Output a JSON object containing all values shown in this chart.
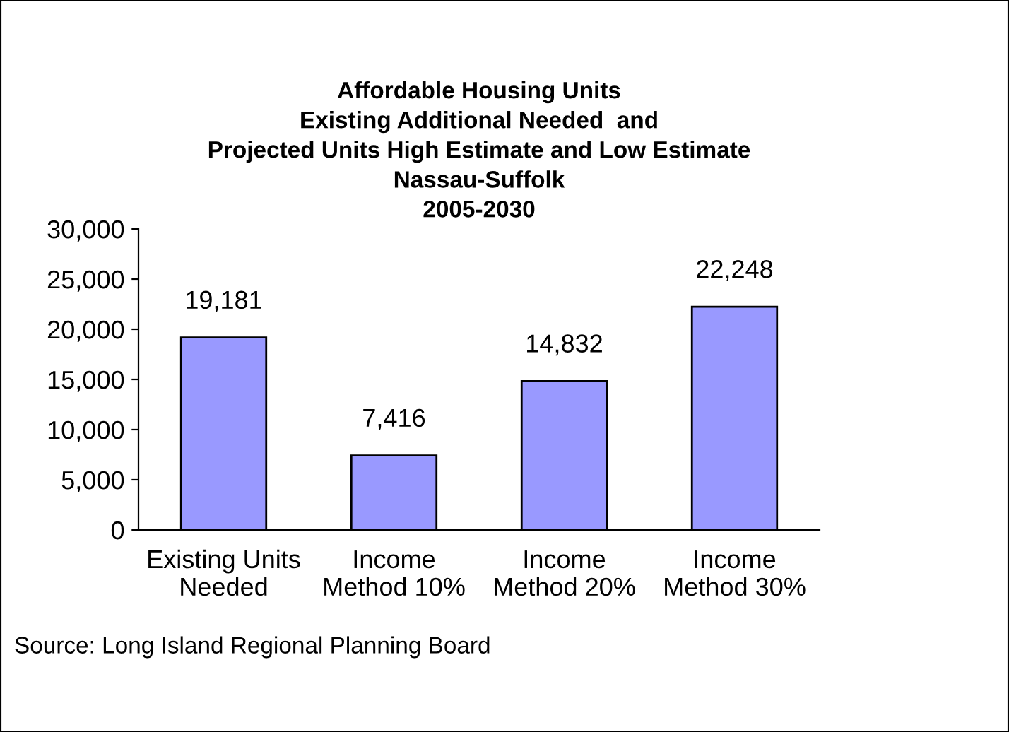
{
  "chart_data": {
    "type": "bar",
    "title": "Affordable Housing Units\nExisting Additional Needed  and\nProjected Units High Estimate and Low Estimate\nNassau-Suffolk\n2005-2030",
    "categories": [
      "Existing Units\nNeeded",
      "Income\nMethod 10%",
      "Income\nMethod 20%",
      "Income\nMethod 30%"
    ],
    "values": [
      19181,
      7416,
      14832,
      22248
    ],
    "value_labels": [
      "19,181",
      "7,416",
      "14,832",
      "22,248"
    ],
    "color": "#9999ff",
    "ylim": [
      0,
      30000
    ],
    "yticks": [
      {
        "value": 0,
        "label": "0"
      },
      {
        "value": 5000,
        "label": "5,000"
      },
      {
        "value": 10000,
        "label": "10,000"
      },
      {
        "value": 15000,
        "label": "15,000"
      },
      {
        "value": 20000,
        "label": "20,000"
      },
      {
        "value": 25000,
        "label": "25,000"
      },
      {
        "value": 30000,
        "label": "30,000"
      }
    ],
    "annotations": [
      "Source: Long Island Regional Planning Board"
    ]
  }
}
